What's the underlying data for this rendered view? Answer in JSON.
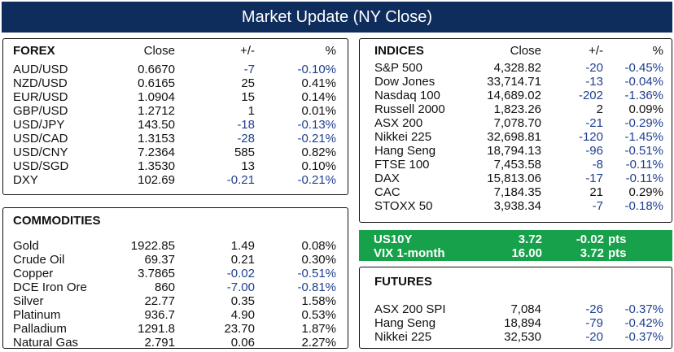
{
  "title": "Market Update (NY Close)",
  "colors": {
    "title_bg": "#0f2d5c",
    "negative": "#1f3f8f",
    "rates_bg": "#17a14a"
  },
  "forex": {
    "header": {
      "name": "FOREX",
      "close": "Close",
      "change": "+/-",
      "pct": "%"
    },
    "rows": [
      {
        "name": "AUD/USD",
        "close": "0.6670",
        "change": "-7",
        "pct": "-0.10%",
        "neg": true
      },
      {
        "name": "NZD/USD",
        "close": "0.6165",
        "change": "25",
        "pct": "0.41%",
        "neg": false
      },
      {
        "name": "EUR/USD",
        "close": "1.0904",
        "change": "15",
        "pct": "0.14%",
        "neg": false
      },
      {
        "name": "GBP/USD",
        "close": "1.2712",
        "change": "1",
        "pct": "0.01%",
        "neg": false
      },
      {
        "name": "USD/JPY",
        "close": "143.50",
        "change": "-18",
        "pct": "-0.13%",
        "neg": true
      },
      {
        "name": "USD/CAD",
        "close": "1.3153",
        "change": "-28",
        "pct": "-0.21%",
        "neg": true
      },
      {
        "name": "USD/CNY",
        "close": "7.2364",
        "change": "585",
        "pct": "0.82%",
        "neg": false
      },
      {
        "name": "USD/SGD",
        "close": "1.3530",
        "change": "13",
        "pct": "0.10%",
        "neg": false
      },
      {
        "name": "DXY",
        "close": "102.69",
        "change": "-0.21",
        "pct": "-0.21%",
        "neg": true
      }
    ]
  },
  "commodities": {
    "header": {
      "name": "COMMODITIES"
    },
    "rows": [
      {
        "name": "Gold",
        "close": "1922.85",
        "change": "1.49",
        "pct": "0.08%",
        "neg": false
      },
      {
        "name": "Crude Oil",
        "close": "69.37",
        "change": "0.21",
        "pct": "0.30%",
        "neg": false
      },
      {
        "name": "Copper",
        "close": "3.7865",
        "change": "-0.02",
        "pct": "-0.51%",
        "neg": true
      },
      {
        "name": "DCE Iron Ore",
        "close": "860",
        "change": "-7.00",
        "pct": "-0.81%",
        "neg": true
      },
      {
        "name": "Silver",
        "close": "22.77",
        "change": "0.35",
        "pct": "1.58%",
        "neg": false
      },
      {
        "name": "Platinum",
        "close": "936.7",
        "change": "4.90",
        "pct": "0.53%",
        "neg": false
      },
      {
        "name": "Palladium",
        "close": "1291.8",
        "change": "23.70",
        "pct": "1.87%",
        "neg": false
      },
      {
        "name": "Natural Gas",
        "close": "2.791",
        "change": "0.06",
        "pct": "2.27%",
        "neg": false
      }
    ]
  },
  "indices": {
    "header": {
      "name": "INDICES",
      "close": "Close",
      "change": "+/-",
      "pct": "%"
    },
    "rows": [
      {
        "name": "S&P 500",
        "close": "4,328.82",
        "change": "-20",
        "pct": "-0.45%",
        "neg": true
      },
      {
        "name": "Dow Jones",
        "close": "33,714.71",
        "change": "-13",
        "pct": "-0.04%",
        "neg": true
      },
      {
        "name": "Nasdaq 100",
        "close": "14,689.02",
        "change": "-202",
        "pct": "-1.36%",
        "neg": true
      },
      {
        "name": "Russell 2000",
        "close": "1,823.26",
        "change": "2",
        "pct": "0.09%",
        "neg": false
      },
      {
        "name": "ASX 200",
        "close": "7,078.70",
        "change": "-21",
        "pct": "-0.29%",
        "neg": true
      },
      {
        "name": "Nikkei 225",
        "close": "32,698.81",
        "change": "-120",
        "pct": "-1.45%",
        "neg": true
      },
      {
        "name": "Hang Seng",
        "close": "18,794.13",
        "change": "-96",
        "pct": "-0.51%",
        "neg": true
      },
      {
        "name": "FTSE 100",
        "close": "7,453.58",
        "change": "-8",
        "pct": "-0.11%",
        "neg": true
      },
      {
        "name": "DAX",
        "close": "15,813.06",
        "change": "-17",
        "pct": "-0.11%",
        "neg": true
      },
      {
        "name": "CAC",
        "close": "7,184.35",
        "change": "21",
        "pct": "0.29%",
        "neg": false
      },
      {
        "name": "STOXX 50",
        "close": "3,938.34",
        "change": "-7",
        "pct": "-0.18%",
        "neg": true
      }
    ]
  },
  "rates": {
    "rows": [
      {
        "name": "US10Y",
        "close": "3.72",
        "change": "-0.02",
        "unit": "pts"
      },
      {
        "name": "VIX 1-month",
        "close": "16.00",
        "change": "3.72",
        "unit": "pts"
      }
    ]
  },
  "futures": {
    "header": {
      "name": "FUTURES"
    },
    "rows": [
      {
        "name": "ASX 200 SPI",
        "close": "7,084",
        "change": "-26",
        "pct": "-0.37%",
        "neg": true
      },
      {
        "name": "Hang Seng",
        "close": "18,894",
        "change": "-79",
        "pct": "-0.42%",
        "neg": true
      },
      {
        "name": "Nikkei 225",
        "close": "32,530",
        "change": "-20",
        "pct": "-0.37%",
        "neg": true
      }
    ]
  }
}
